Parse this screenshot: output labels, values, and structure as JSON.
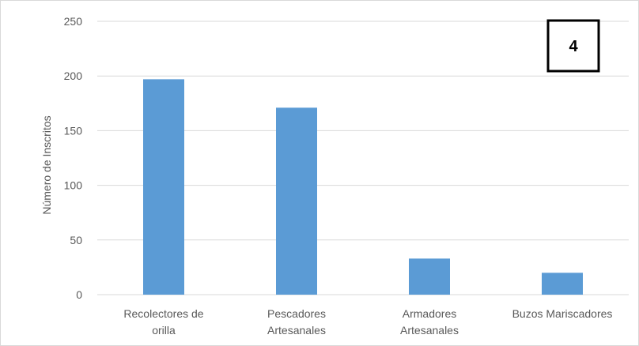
{
  "chart_data": {
    "type": "bar",
    "categories": [
      [
        "Recolectores de",
        "orilla"
      ],
      [
        "Pescadores",
        "Artesanales"
      ],
      [
        "Armadores",
        "Artesanales"
      ],
      [
        "Buzos Mariscadores"
      ]
    ],
    "values": [
      197,
      171,
      33,
      20
    ],
    "title": "",
    "xlabel": "",
    "ylabel": "Número de Inscritos",
    "ylim": [
      0,
      250
    ],
    "yticks": [
      0,
      50,
      100,
      150,
      200,
      250
    ],
    "grid": true,
    "legend": "none",
    "bar_color": "#5b9bd5",
    "grid_color": "#d9d9d9",
    "annotation": "4"
  }
}
